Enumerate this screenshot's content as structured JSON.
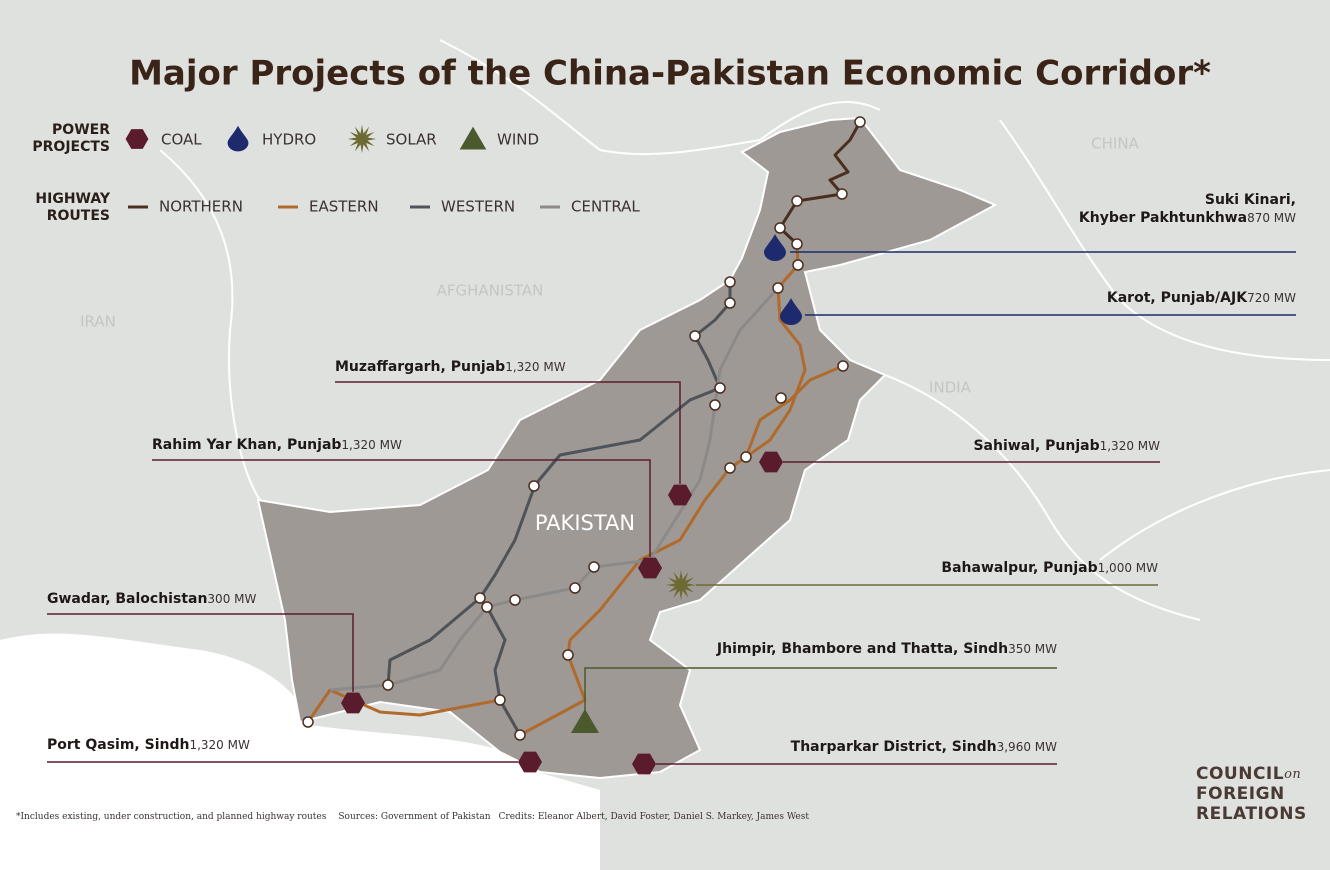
{
  "title": "Major Projects of the China-Pakistan Economic Corridor*",
  "legend": {
    "power_title": [
      "POWER",
      "PROJECTS"
    ],
    "power": [
      {
        "name": "COAL",
        "kind": "coal",
        "color": "#5a1c2c"
      },
      {
        "name": "HYDRO",
        "kind": "hydro",
        "color": "#1d2a6e"
      },
      {
        "name": "SOLAR",
        "kind": "solar",
        "color": "#6e6a34"
      },
      {
        "name": "WIND",
        "kind": "wind",
        "color": "#4b5a2c"
      }
    ],
    "highway_title": [
      "HIGHWAY",
      "ROUTES"
    ],
    "highways": [
      {
        "name": "NORTHERN",
        "color": "#4a2e20"
      },
      {
        "name": "EASTERN",
        "color": "#b06a2c"
      },
      {
        "name": "WESTERN",
        "color": "#4d5358"
      },
      {
        "name": "CENTRAL",
        "color": "#8c8a88"
      }
    ]
  },
  "regions": [
    "CHINA",
    "AFGHANISTAN",
    "IRAN",
    "INDIA",
    "PAKISTAN"
  ],
  "projects": [
    {
      "name": [
        "Suki Kinari,",
        "Khyber Pakhtunkhwa"
      ],
      "capacity": "870 MW",
      "kind": 1
    },
    {
      "name": [
        "Karot, Punjab/AJK"
      ],
      "capacity": "720 MW",
      "kind": 1
    },
    {
      "name": [
        "Muzaffargarh, Punjab"
      ],
      "capacity": "1,320 MW",
      "kind": 0
    },
    {
      "name": [
        "Rahim Yar Khan, Punjab"
      ],
      "capacity": "1,320 MW",
      "kind": 0
    },
    {
      "name": [
        "Sahiwal, Punjab"
      ],
      "capacity": "1,320 MW",
      "kind": 0
    },
    {
      "name": [
        "Bahawalpur, Punjab"
      ],
      "capacity": "1,000 MW",
      "kind": 2
    },
    {
      "name": [
        "Gwadar, Balochistan"
      ],
      "capacity": "300 MW",
      "kind": 0
    },
    {
      "name": [
        "Jhimpir, Bhambore and Thatta, Sindh"
      ],
      "capacity": "350 MW",
      "kind": 3
    },
    {
      "name": [
        "Port Qasim, Sindh"
      ],
      "capacity": "1,320 MW",
      "kind": 0
    },
    {
      "name": [
        "Tharparkar District, Sindh"
      ],
      "capacity": "3,960 MW",
      "kind": 0
    }
  ],
  "footnote": "*Includes existing, under construction, and planned highway routes",
  "sources": "Sources:  Government of Pakistan",
  "credits": "Credits: Eleanor Albert, David Foster, Daniel S. Markey, James West",
  "logo": {
    "line1": "COUNCIL",
    "connector": "on",
    "line2": "FOREIGN",
    "line3": "RELATIONS"
  }
}
